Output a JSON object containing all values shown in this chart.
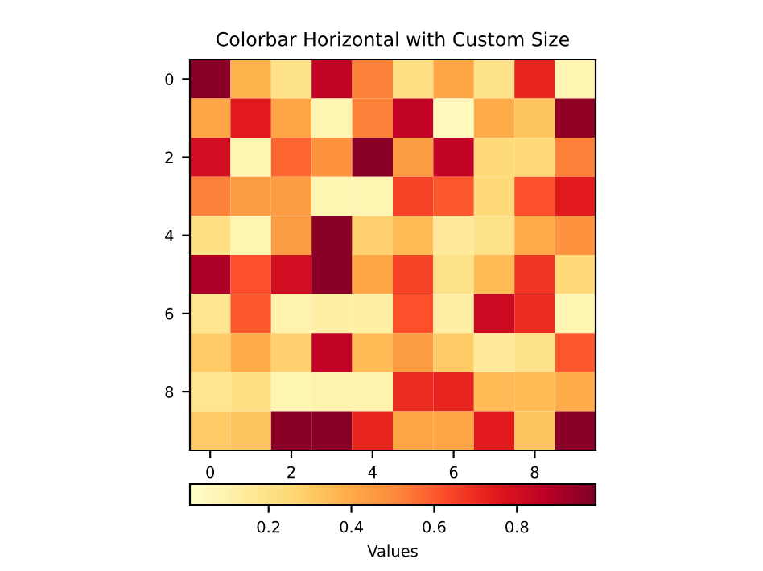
{
  "chart_data": {
    "type": "heatmap",
    "title": "Colorbar Horizontal with Custom Size",
    "clabel": "Values",
    "categories": [
      "0",
      null,
      "2",
      null,
      "4",
      null,
      "6",
      null,
      "8",
      null
    ],
    "y_categories": [
      "0",
      null,
      "2",
      null,
      "4",
      null,
      "6",
      null,
      "8",
      null
    ],
    "cells": [
      [
        0.97,
        0.38,
        0.2,
        0.85,
        0.52,
        0.22,
        0.42,
        0.2,
        0.72,
        0.08
      ],
      [
        0.42,
        0.75,
        0.42,
        0.08,
        0.52,
        0.85,
        0.05,
        0.4,
        0.32,
        0.95
      ],
      [
        0.8,
        0.08,
        0.58,
        0.48,
        0.97,
        0.45,
        0.85,
        0.25,
        0.25,
        0.52
      ],
      [
        0.52,
        0.45,
        0.45,
        0.08,
        0.08,
        0.65,
        0.6,
        0.25,
        0.62,
        0.75
      ],
      [
        0.22,
        0.08,
        0.45,
        0.97,
        0.28,
        0.35,
        0.15,
        0.2,
        0.4,
        0.48
      ],
      [
        0.9,
        0.62,
        0.8,
        0.97,
        0.42,
        0.65,
        0.2,
        0.35,
        0.68,
        0.25
      ],
      [
        0.18,
        0.6,
        0.1,
        0.12,
        0.12,
        0.62,
        0.12,
        0.82,
        0.7,
        0.08
      ],
      [
        0.3,
        0.4,
        0.28,
        0.85,
        0.35,
        0.45,
        0.3,
        0.15,
        0.2,
        0.6
      ],
      [
        0.18,
        0.22,
        0.08,
        0.1,
        0.1,
        0.7,
        0.72,
        0.35,
        0.35,
        0.4
      ],
      [
        0.3,
        0.32,
        0.97,
        0.97,
        0.72,
        0.42,
        0.42,
        0.75,
        0.32,
        0.97
      ]
    ],
    "clim": [
      0.01,
      0.99
    ],
    "cticks": [
      0.2,
      0.4,
      0.6,
      0.8
    ]
  }
}
